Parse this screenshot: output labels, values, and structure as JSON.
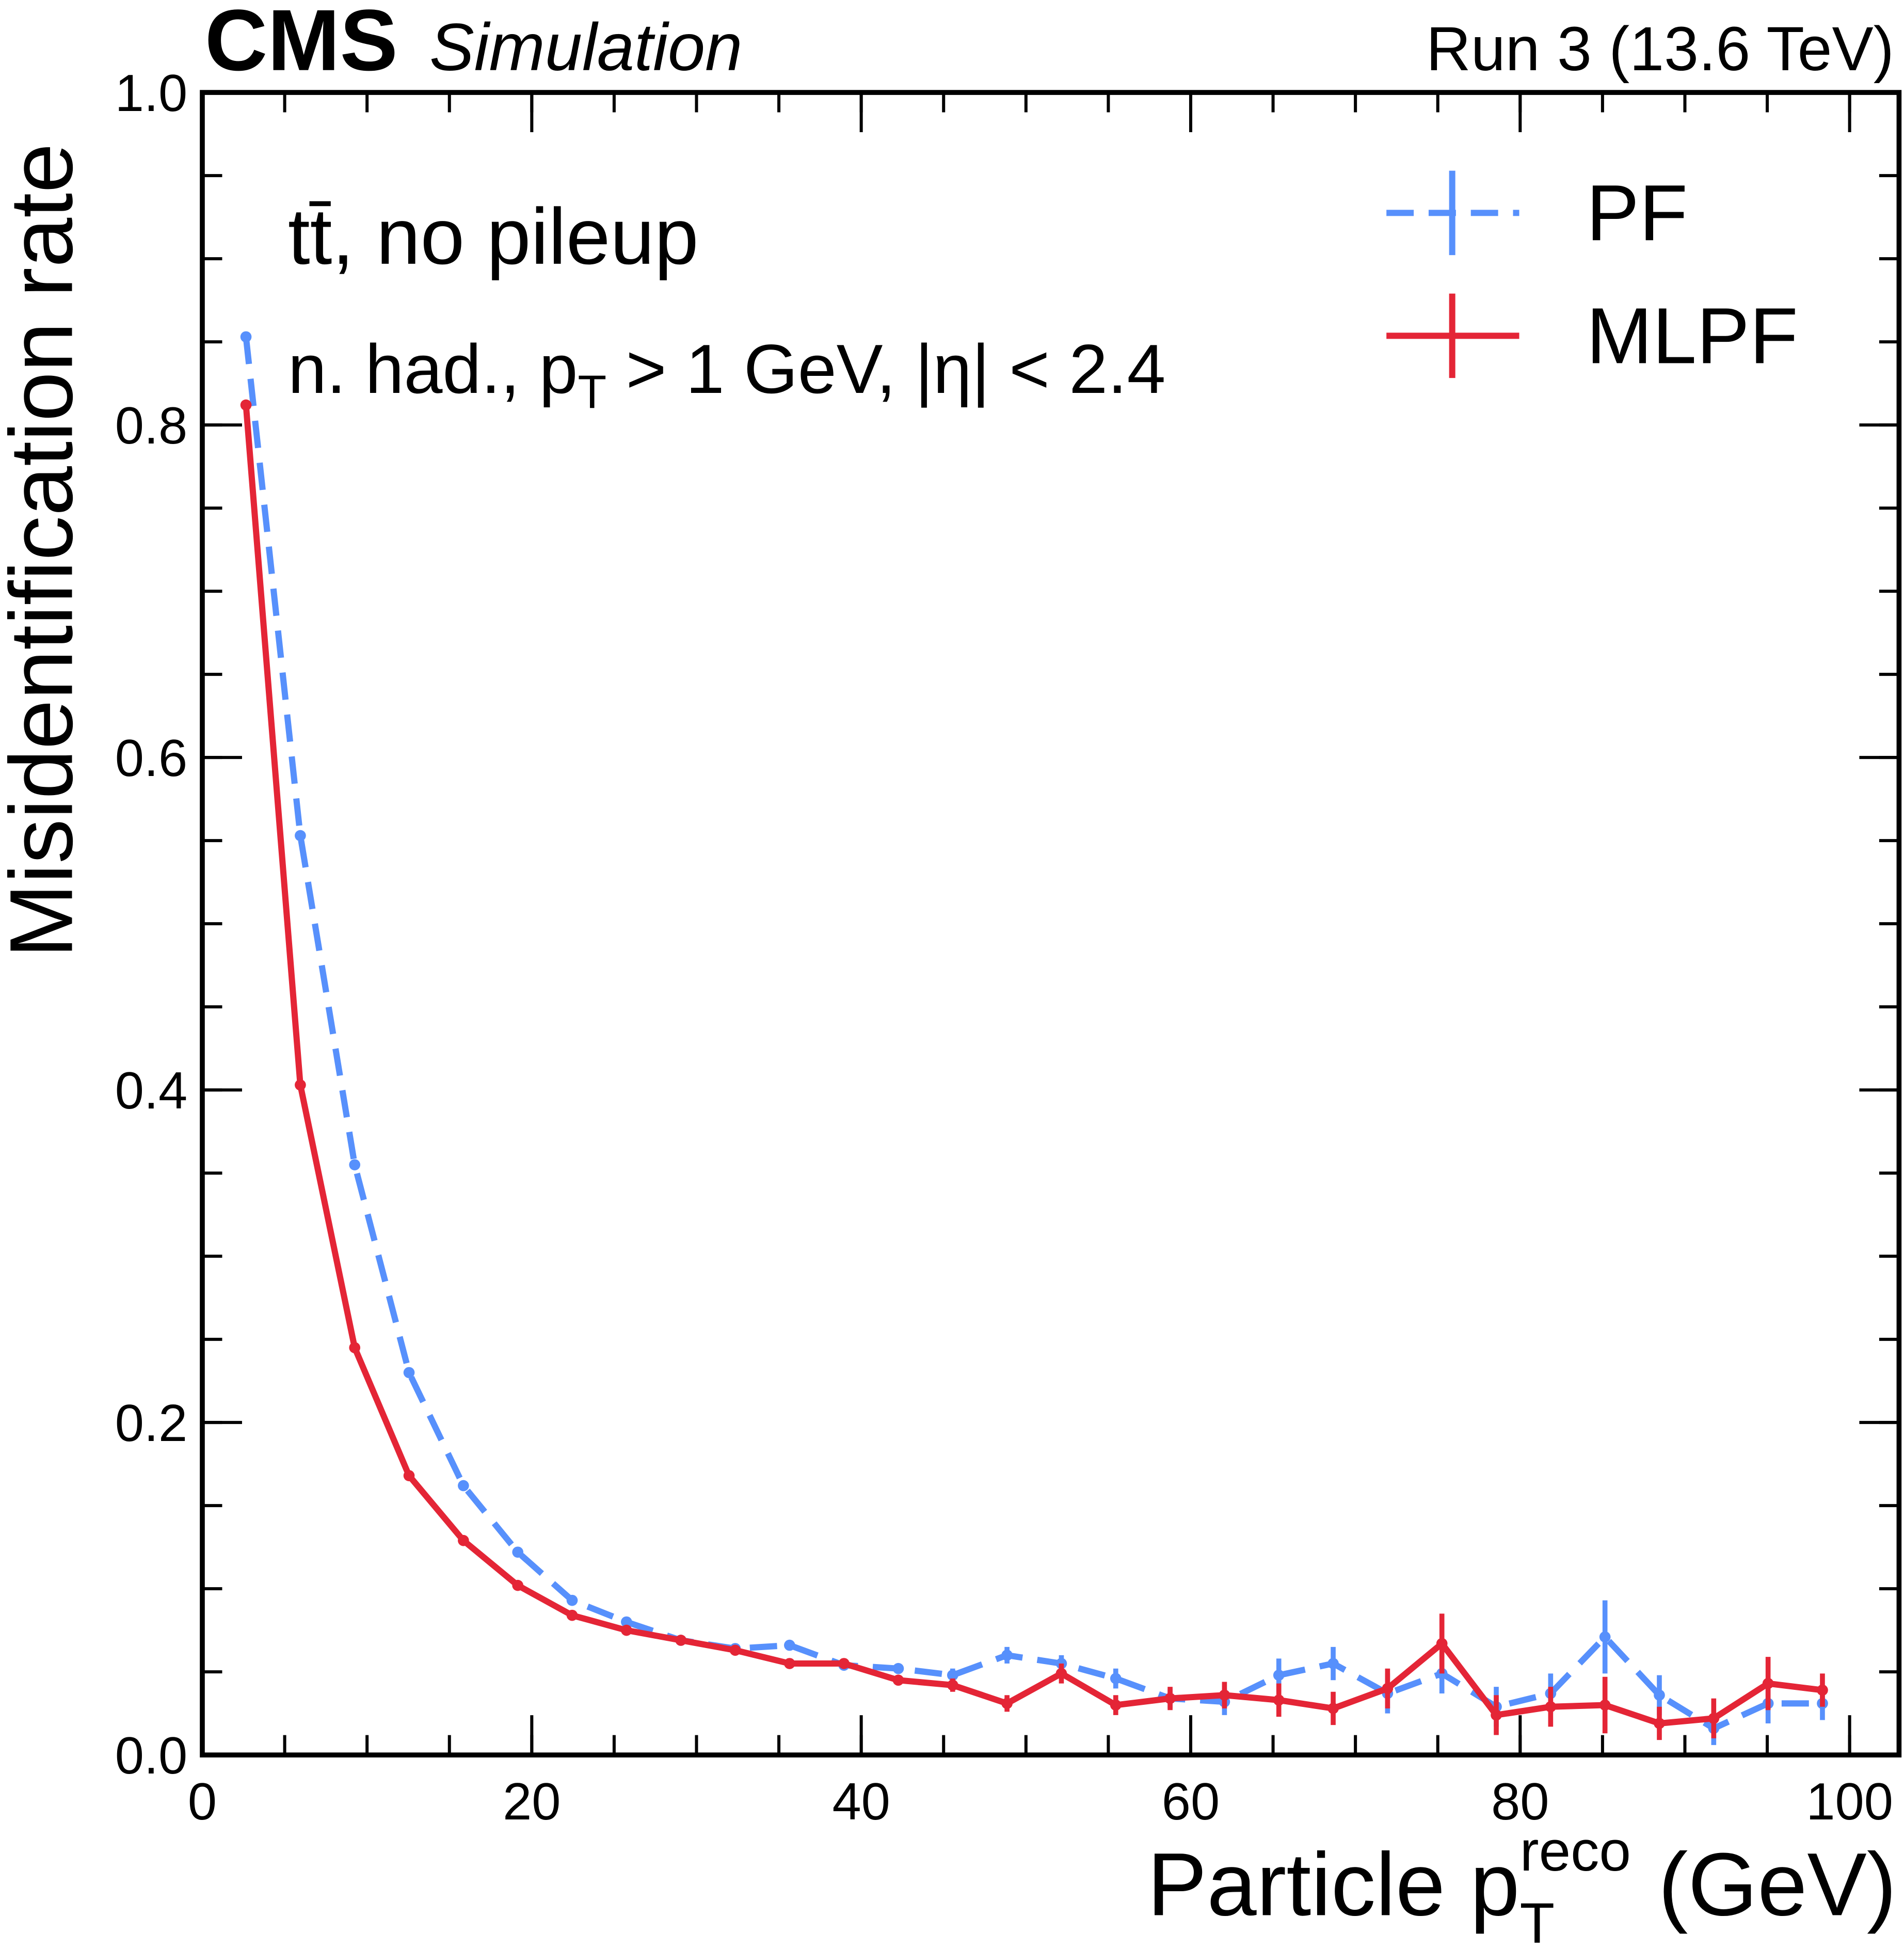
{
  "chart_data": {
    "type": "line",
    "experiment": "CMS",
    "experiment_status": "Simulation",
    "run_label": "Run 3 (13.6 TeV)",
    "x_label": {
      "main": "Particle p",
      "sub": "T",
      "sup": "reco",
      "unit": "(GeV)"
    },
    "y_label": "Misidentification rate",
    "annotations": [
      {
        "parts": [
          "tt̄, no pileup"
        ]
      },
      {
        "parts": [
          "n. had., p",
          "T",
          " > 1 GeV, |η| < 2.4"
        ]
      }
    ],
    "x": [
      2.65,
      5.95,
      9.25,
      12.55,
      15.85,
      19.15,
      22.45,
      25.75,
      29.05,
      32.35,
      35.65,
      38.95,
      42.25,
      45.55,
      48.85,
      52.15,
      55.45,
      58.75,
      62.05,
      65.35,
      68.65,
      71.95,
      75.25,
      78.55,
      81.85,
      85.15,
      88.45,
      91.75,
      95.05,
      98.35
    ],
    "series": [
      {
        "name": "PF",
        "color": "#5790fc",
        "dashed": true,
        "values": [
          0.853,
          0.553,
          0.355,
          0.23,
          0.162,
          0.122,
          0.093,
          0.08,
          0.069,
          0.064,
          0.066,
          0.054,
          0.052,
          0.048,
          0.06,
          0.055,
          0.046,
          0.034,
          0.032,
          0.048,
          0.055,
          0.037,
          0.049,
          0.029,
          0.037,
          0.071,
          0.036,
          0.016,
          0.031,
          0.031
        ],
        "errors": [
          0.002,
          0.002,
          0.002,
          0.002,
          0.002,
          0.002,
          0.002,
          0.002,
          0.002,
          0.002,
          0.003,
          0.003,
          0.003,
          0.004,
          0.005,
          0.005,
          0.006,
          0.006,
          0.008,
          0.01,
          0.01,
          0.012,
          0.012,
          0.012,
          0.012,
          0.022,
          0.012,
          0.01,
          0.012,
          0.01
        ]
      },
      {
        "name": "MLPF",
        "color": "#e42536",
        "dashed": false,
        "values": [
          0.812,
          0.403,
          0.245,
          0.168,
          0.129,
          0.102,
          0.084,
          0.075,
          0.069,
          0.063,
          0.055,
          0.055,
          0.045,
          0.042,
          0.031,
          0.049,
          0.03,
          0.034,
          0.036,
          0.033,
          0.028,
          0.04,
          0.067,
          0.024,
          0.029,
          0.03,
          0.019,
          0.022,
          0.043,
          0.039
        ],
        "errors": [
          0.002,
          0.002,
          0.002,
          0.002,
          0.002,
          0.002,
          0.002,
          0.002,
          0.002,
          0.002,
          0.002,
          0.003,
          0.003,
          0.004,
          0.005,
          0.006,
          0.006,
          0.007,
          0.008,
          0.01,
          0.01,
          0.012,
          0.018,
          0.012,
          0.012,
          0.017,
          0.01,
          0.012,
          0.016,
          0.01
        ]
      }
    ],
    "xlim": [
      0,
      103
    ],
    "xticks": [
      0,
      20,
      40,
      60,
      80,
      100
    ],
    "ylim": [
      0,
      1.0
    ],
    "yticks": [
      {
        "value": 0,
        "label": "0.0"
      },
      {
        "value": 0.2,
        "label": "0.2"
      },
      {
        "value": 0.4,
        "label": "0.4"
      },
      {
        "value": 0.6,
        "label": "0.6"
      },
      {
        "value": 0.8,
        "label": "0.8"
      },
      {
        "value": 1.0,
        "label": "1.0"
      }
    ],
    "legend": "upper right"
  }
}
